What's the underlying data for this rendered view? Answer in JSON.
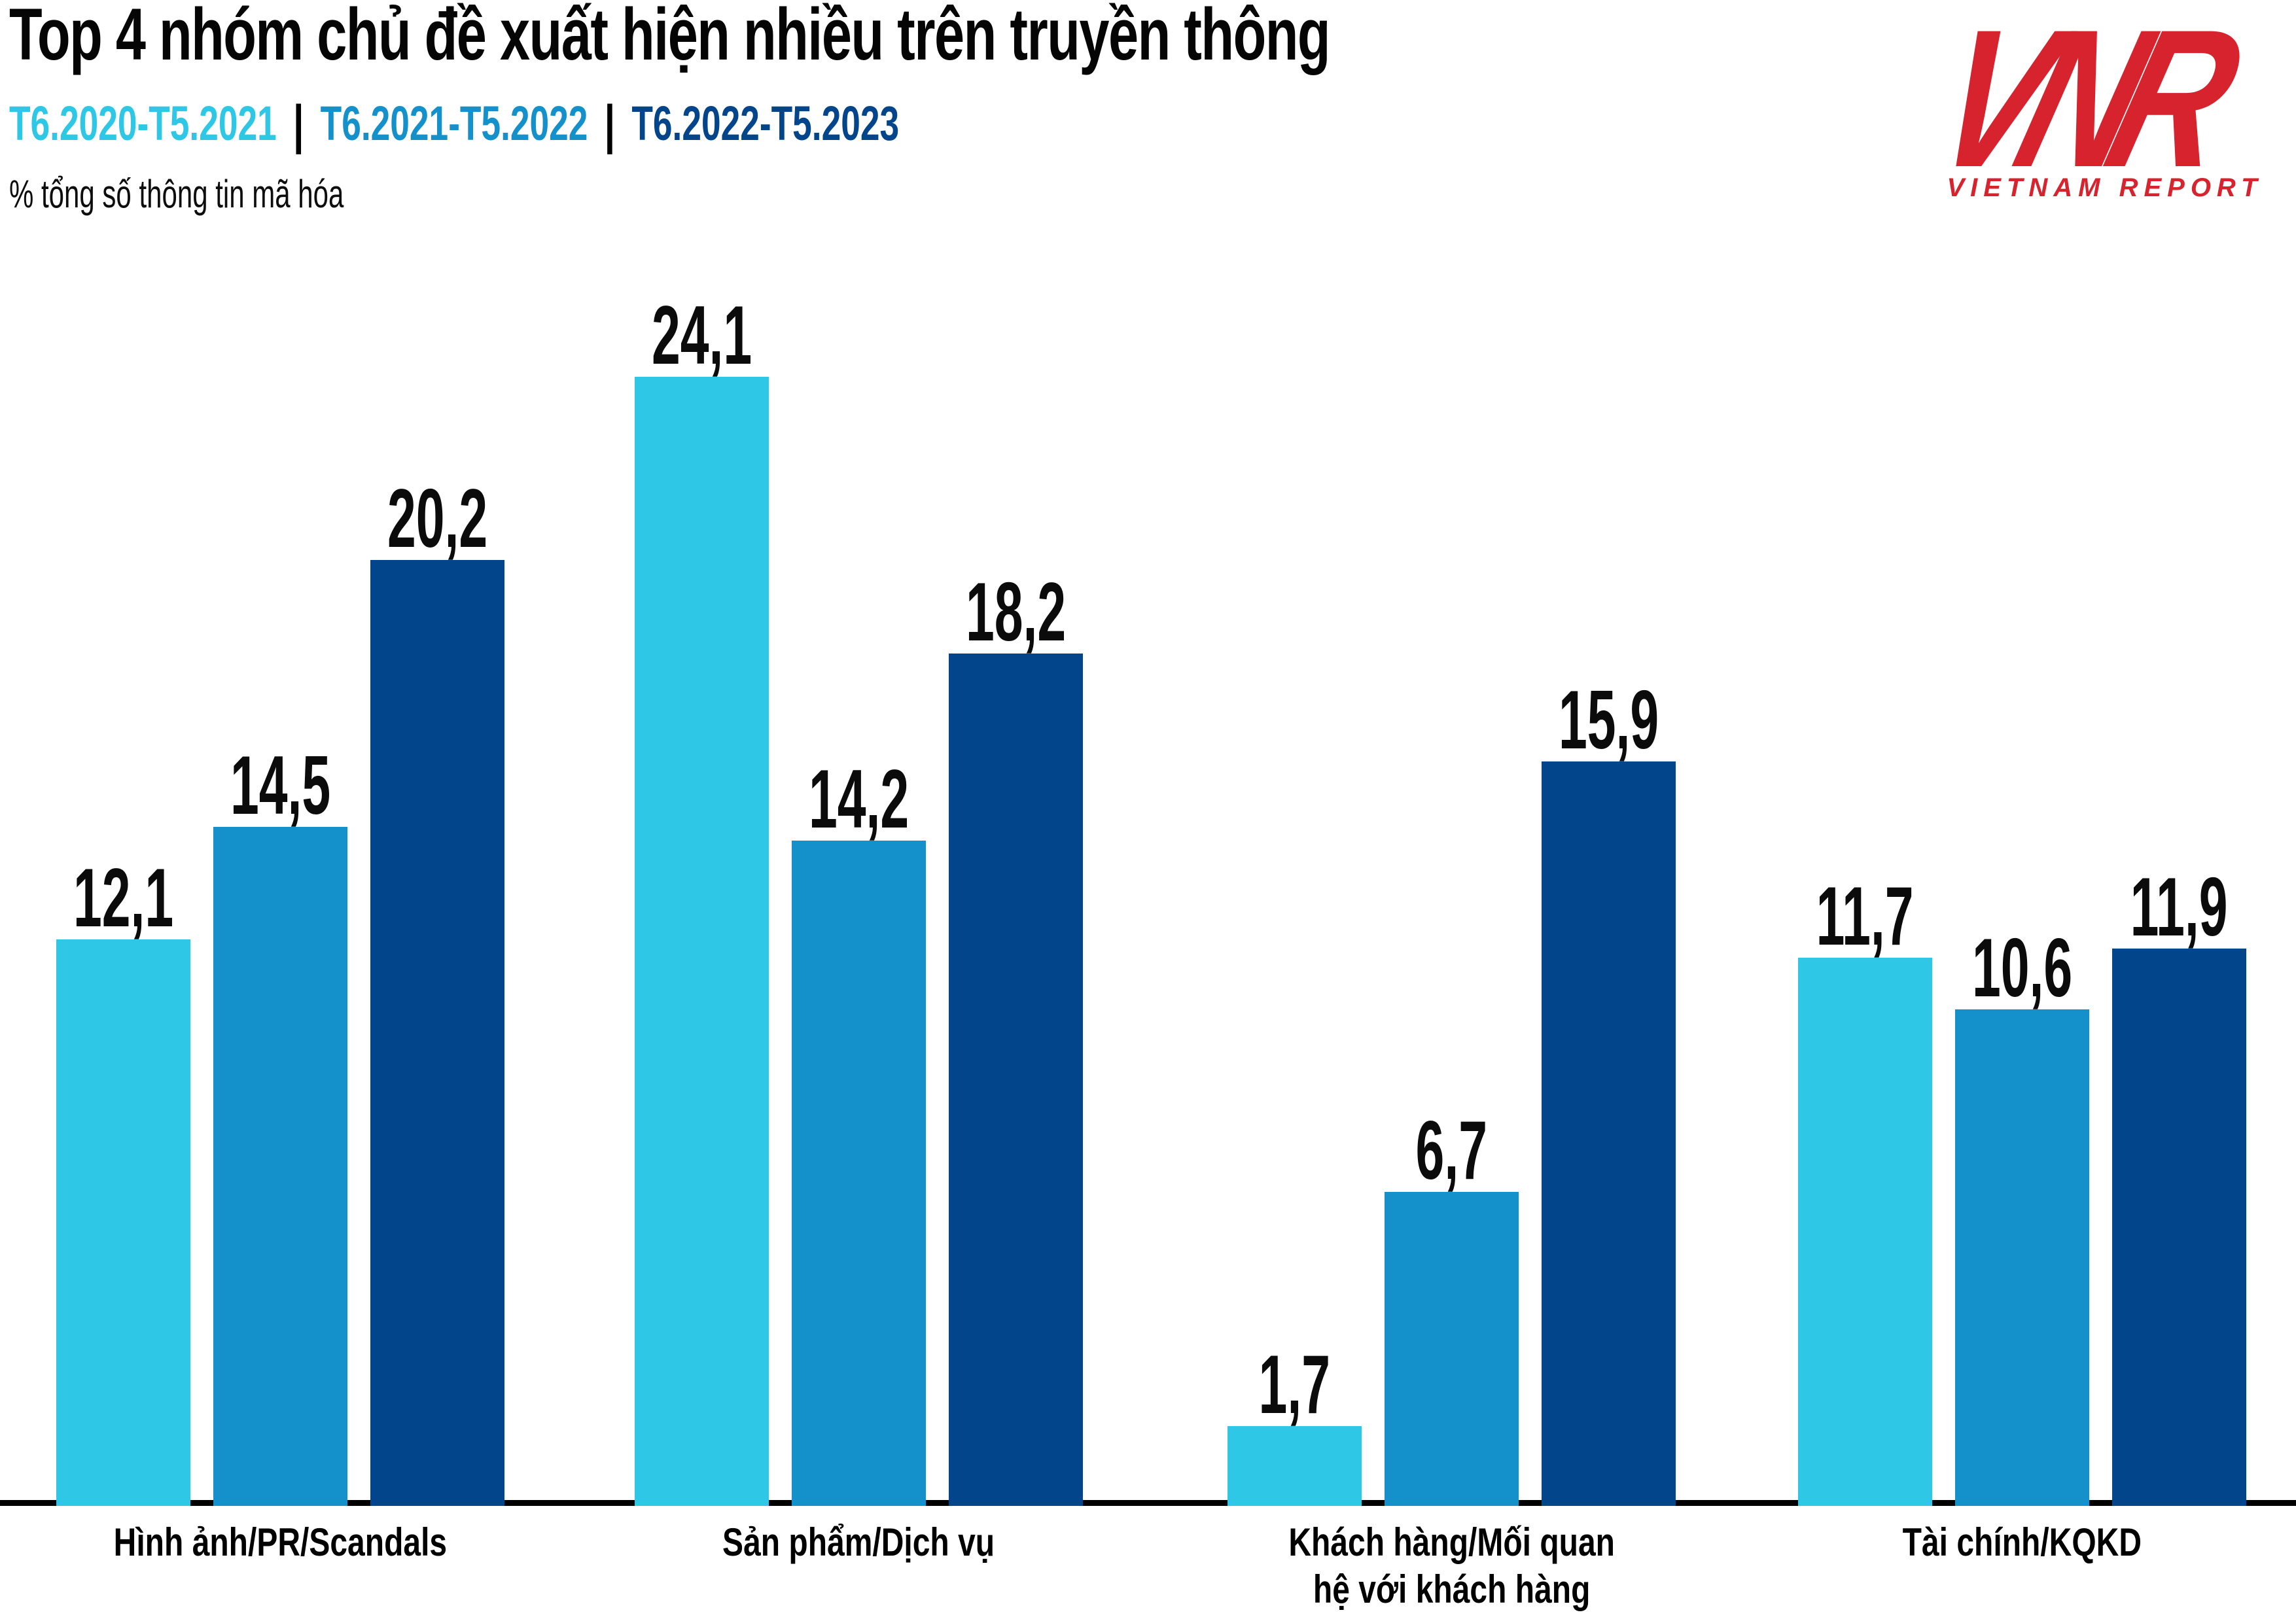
{
  "header": {
    "legend_separator": "|"
  },
  "logo": {
    "letters": [
      "V",
      "N",
      "R"
    ],
    "caption": "VIETNAM REPORT",
    "color": "#d7232e"
  },
  "chart_data": {
    "type": "bar",
    "title": "Top 4 nhóm chủ đề xuất hiện nhiều trên truyền thông",
    "ylabel": "% tổng số thông tin mã hóa",
    "categories": [
      "Hình ảnh/PR/Scandals",
      "Sản phẩm/Dịch vụ",
      "Khách hàng/Mối quan\nhệ với khách hàng",
      "Tài chính/KQKD"
    ],
    "series": [
      {
        "name": "T6.2020-T5.2021",
        "color": "#2fc7e6",
        "values": [
          12.1,
          24.1,
          1.7,
          11.7
        ]
      },
      {
        "name": "T6.2021-T5.2022",
        "color": "#1490cb",
        "values": [
          14.5,
          14.2,
          6.7,
          10.6
        ]
      },
      {
        "name": "T6.2022-T5.2023",
        "color": "#03458a",
        "values": [
          20.2,
          18.2,
          15.9,
          11.9
        ]
      }
    ],
    "decimal_separator": ",",
    "ylim": [
      0,
      25.5
    ],
    "grid": false,
    "legend_position": "top-left",
    "value_labels": true
  }
}
